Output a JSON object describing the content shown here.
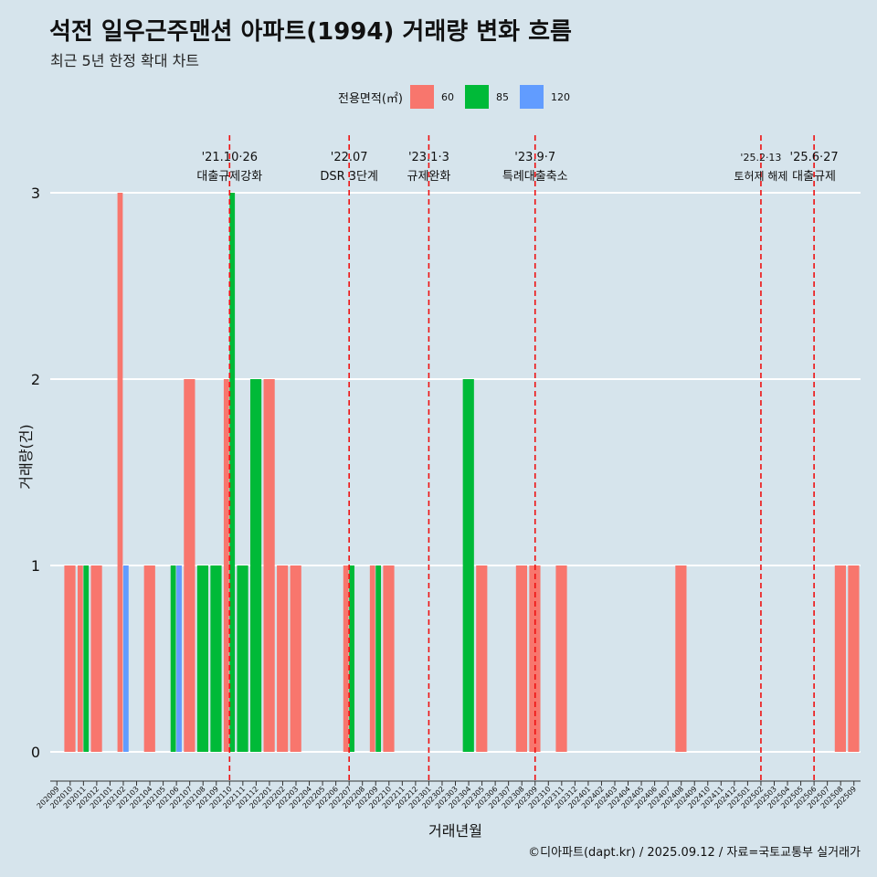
{
  "chart_data": {
    "type": "bar",
    "title": "석전 일우근주맨션 아파트(1994) 거래량 변화 흐름",
    "subtitle": "최근 5년 한정 확대 차트",
    "xlabel": "거래년월",
    "ylabel": "거래량(건)",
    "ylim": [
      0,
      3
    ],
    "yticks": [
      "0",
      "1",
      "2",
      "3"
    ],
    "grid": true,
    "legend_title": "전용면적(㎡)",
    "legend_position": "top",
    "categories": [
      "202009",
      "202010",
      "202011",
      "202012",
      "202101",
      "202102",
      "202103",
      "202104",
      "202105",
      "202106",
      "202107",
      "202108",
      "202109",
      "202110",
      "202111",
      "202112",
      "202201",
      "202202",
      "202203",
      "202204",
      "202205",
      "202206",
      "202207",
      "202208",
      "202209",
      "202210",
      "202211",
      "202212",
      "202301",
      "202302",
      "202303",
      "202304",
      "202305",
      "202306",
      "202307",
      "202308",
      "202309",
      "202310",
      "202311",
      "202312",
      "202401",
      "202402",
      "202403",
      "202404",
      "202405",
      "202406",
      "202407",
      "202408",
      "202409",
      "202410",
      "202411",
      "202412",
      "202501",
      "202502",
      "202503",
      "202504",
      "202505",
      "202506",
      "202507",
      "202508",
      "202509"
    ],
    "series": [
      {
        "name": "60",
        "color": "#f8766d",
        "values": [
          0,
          1,
          1,
          1,
          0,
          3,
          0,
          1,
          0,
          0,
          2,
          0,
          0,
          2,
          0,
          0,
          2,
          1,
          1,
          0,
          0,
          0,
          1,
          0,
          1,
          1,
          0,
          0,
          0,
          0,
          0,
          0,
          1,
          0,
          0,
          1,
          1,
          0,
          1,
          0,
          0,
          0,
          0,
          0,
          0,
          0,
          0,
          1,
          0,
          0,
          0,
          0,
          0,
          0,
          0,
          0,
          0,
          0,
          0,
          1,
          1
        ]
      },
      {
        "name": "85",
        "color": "#00ba38",
        "values": [
          0,
          0,
          1,
          0,
          0,
          0,
          0,
          0,
          0,
          1,
          0,
          1,
          1,
          3,
          1,
          2,
          0,
          0,
          0,
          0,
          0,
          0,
          1,
          0,
          1,
          0,
          0,
          0,
          0,
          0,
          0,
          2,
          0,
          0,
          0,
          0,
          0,
          0,
          0,
          0,
          0,
          0,
          0,
          0,
          0,
          0,
          0,
          0,
          0,
          0,
          0,
          0,
          0,
          0,
          0,
          0,
          0,
          0,
          0,
          0,
          0
        ]
      },
      {
        "name": "120",
        "color": "#619cff",
        "values": [
          0,
          0,
          0,
          0,
          0,
          1,
          0,
          0,
          0,
          1,
          0,
          0,
          0,
          0,
          0,
          0,
          0,
          0,
          0,
          0,
          0,
          0,
          0,
          0,
          0,
          0,
          0,
          0,
          0,
          0,
          0,
          0,
          0,
          0,
          0,
          0,
          0,
          0,
          0,
          0,
          0,
          0,
          0,
          0,
          0,
          0,
          0,
          0,
          0,
          0,
          0,
          0,
          0,
          0,
          0,
          0,
          0,
          0,
          0,
          0,
          0
        ]
      }
    ],
    "annotations": [
      {
        "x": "202110",
        "date": "'21.10·26",
        "text": "대출규제강화"
      },
      {
        "x": "202207",
        "date": "'22.07",
        "text": "DSR 3단계"
      },
      {
        "x": "202301",
        "date": "'23.1·3",
        "text": "규제완화"
      },
      {
        "x": "202309",
        "date": "'23.9·7",
        "text": "특례대출축소"
      },
      {
        "x": "202502",
        "date": "'25.2·13",
        "text": "토허제 해제"
      },
      {
        "x": "202506",
        "date": "'25.6·27",
        "text": "대출규제"
      }
    ],
    "line_color": "#ee1111"
  },
  "footer": "©디아파트(dapt.kr) / 2025.09.12 / 자료=국토교통부 실거래가"
}
